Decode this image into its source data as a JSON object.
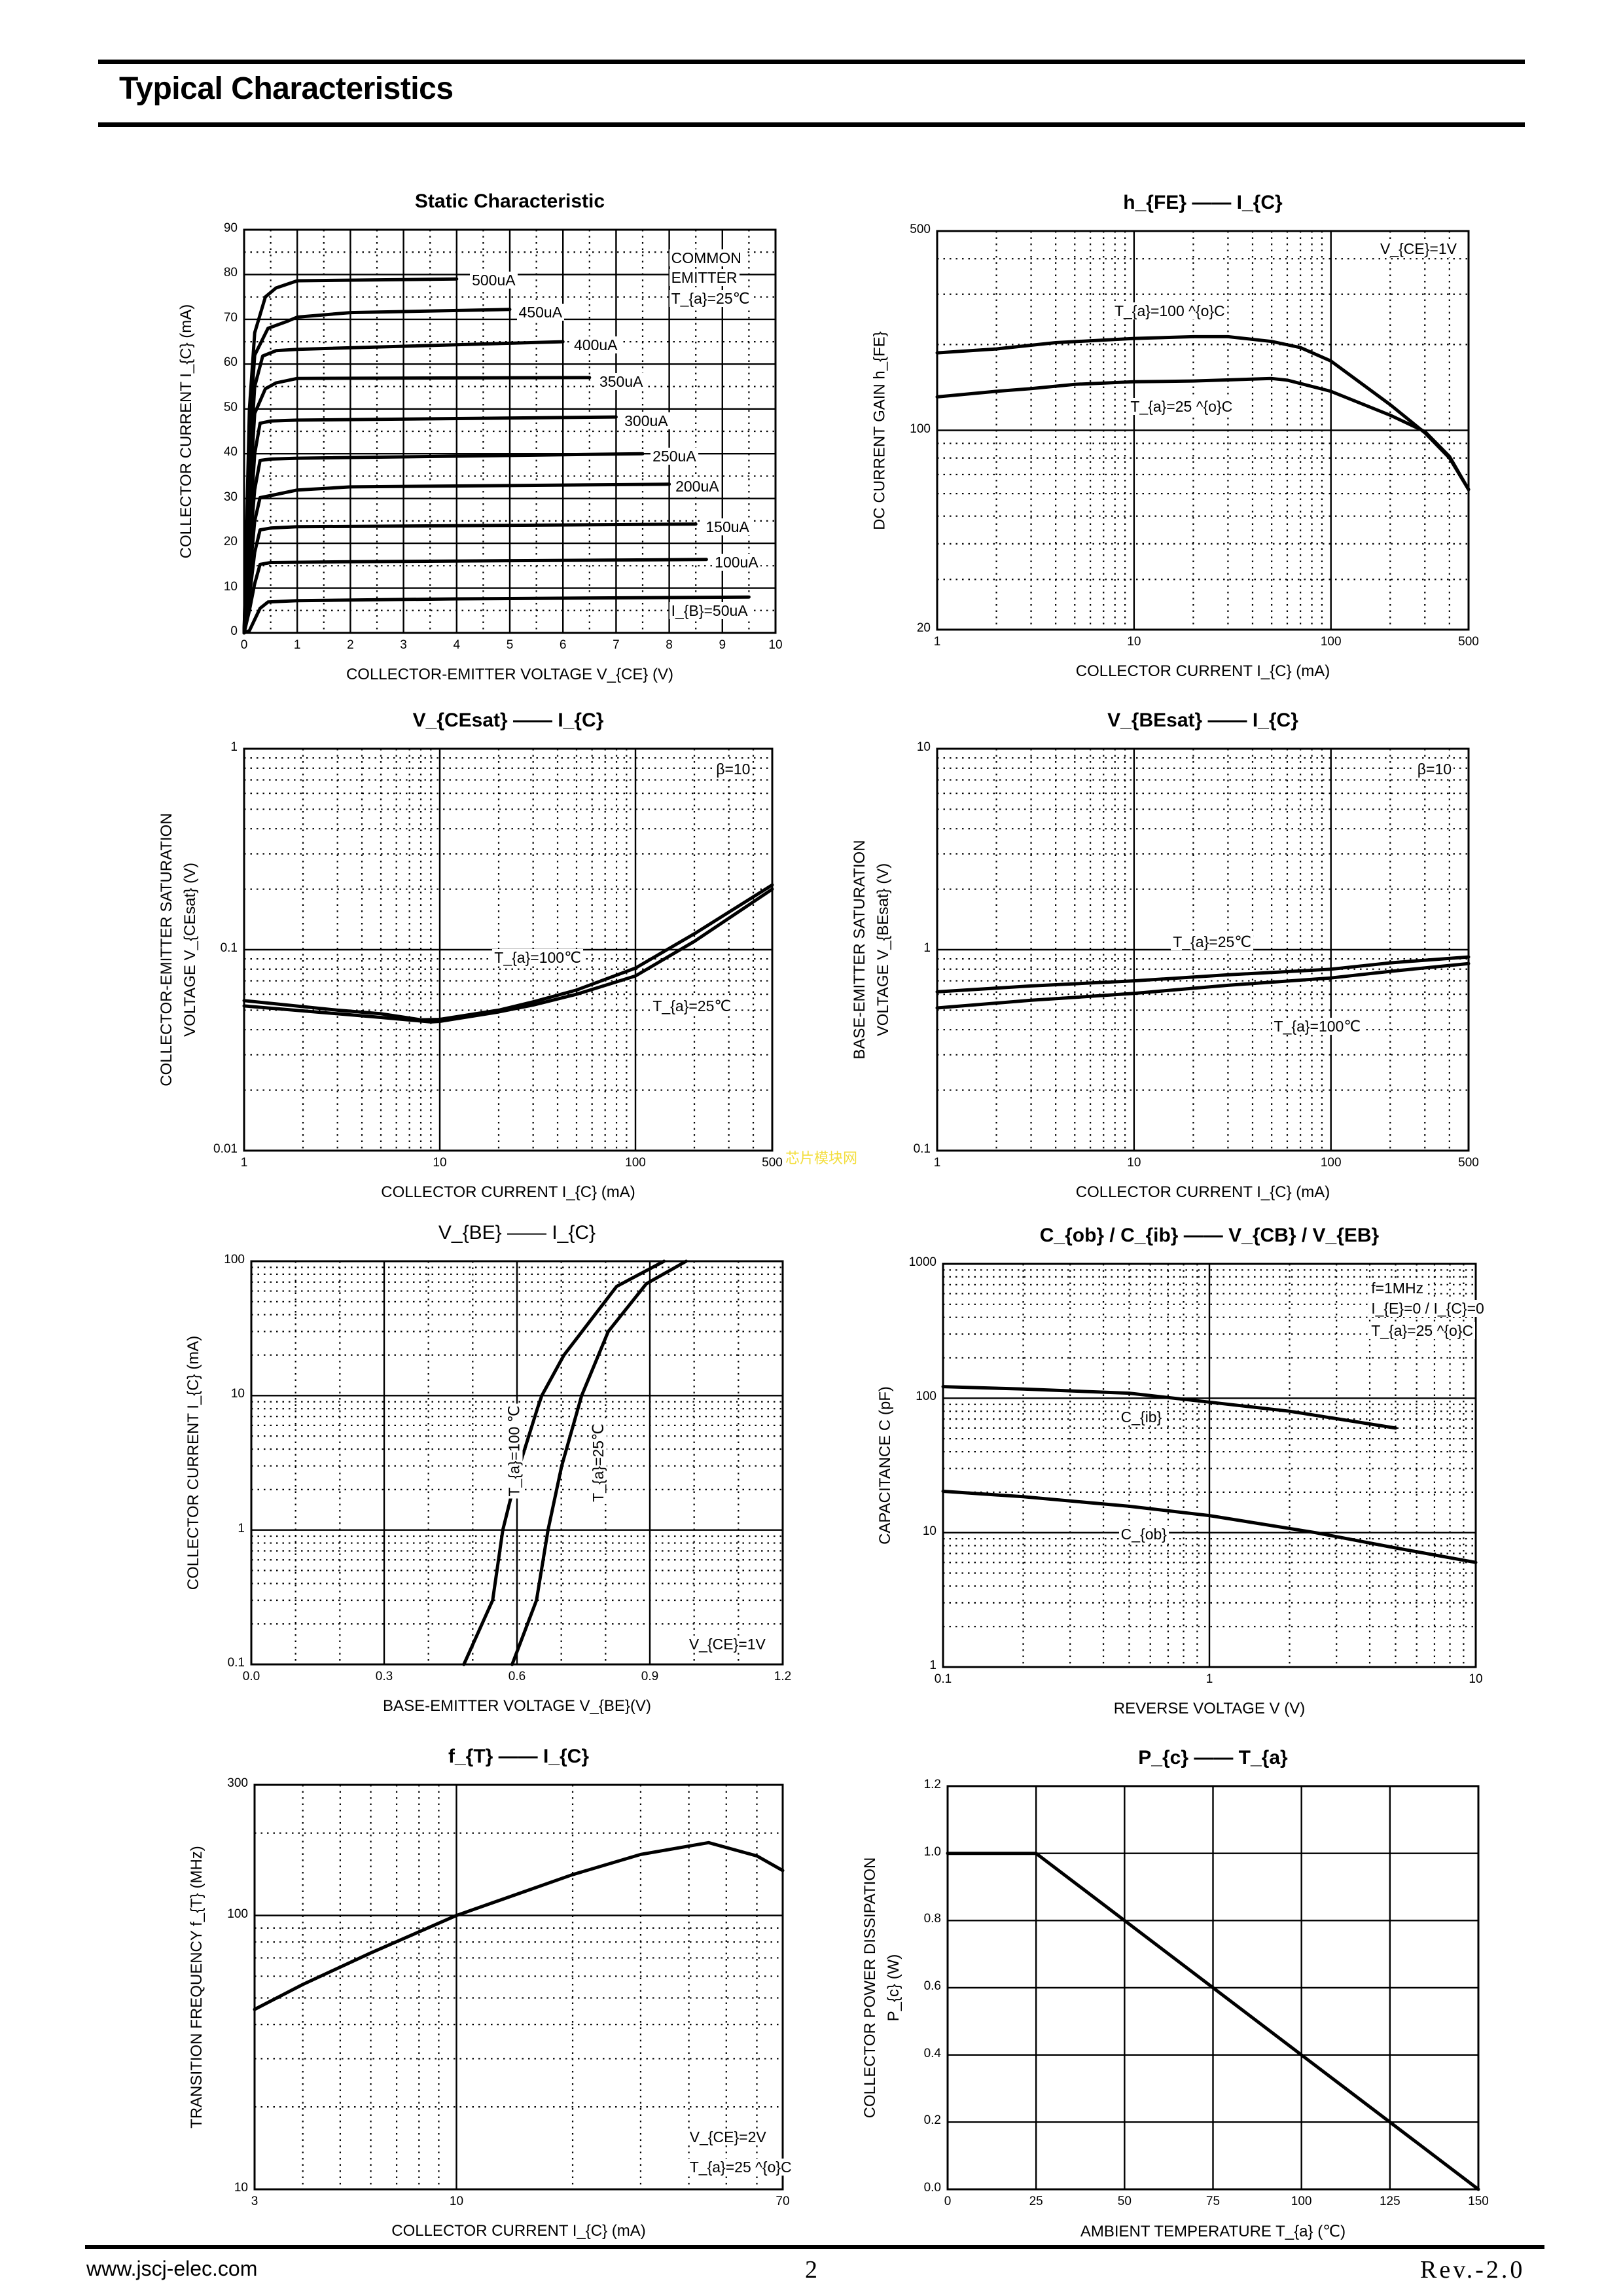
{
  "header": {
    "title": "Typical Characteristics"
  },
  "footer": {
    "website": "www.jscj-elec.com",
    "page_number": "2",
    "revision": "Rev.-2.0"
  },
  "watermark": "芯片模块网",
  "chart_data": [
    {
      "type": "line",
      "title": "Static Characteristic",
      "xlabel": "COLLECTOR-EMITTER VOLTAGE    V_{CE}    (V)",
      "ylabel": [
        "COLLECTOR CURRENT    I_{C}    (mA)"
      ],
      "xscale": "linear",
      "yscale": "linear",
      "xlim": [
        0,
        10
      ],
      "ylim": [
        0,
        90
      ],
      "grid": true,
      "xticks": [
        0,
        1,
        2,
        3,
        4,
        5,
        6,
        7,
        8,
        9,
        10
      ],
      "xtick_labels": [
        "0",
        "1",
        "2",
        "3",
        "4",
        "5",
        "6",
        "7",
        "8",
        "9",
        "10"
      ],
      "yticks": [
        0,
        10,
        20,
        30,
        40,
        50,
        60,
        70,
        80,
        90
      ],
      "ytick_labels": [
        "0",
        "10",
        "20",
        "30",
        "40",
        "50",
        "60",
        "70",
        "80",
        "90"
      ],
      "annotations": [
        "COMMON",
        "EMITTER",
        "T_{a}=25℃"
      ],
      "series": [
        {
          "name": "500uA",
          "label": "500uA",
          "x": [
            0,
            0.1,
            0.2,
            0.4,
            0.6,
            1,
            4
          ],
          "y": [
            0,
            50,
            67,
            75,
            77,
            78.6,
            79
          ]
        },
        {
          "name": "450uA",
          "label": "450uA",
          "x": [
            0,
            0.1,
            0.2,
            0.45,
            0.8,
            1,
            2,
            5
          ],
          "y": [
            0,
            45,
            62,
            68,
            69.5,
            70.5,
            71.5,
            72.2
          ]
        },
        {
          "name": "400uA",
          "label": "400uA",
          "x": [
            0,
            0.1,
            0.2,
            0.35,
            0.6,
            1,
            6
          ],
          "y": [
            0,
            36,
            55,
            61.8,
            63,
            63.3,
            65
          ]
        },
        {
          "name": "350uA",
          "label": "350uA",
          "x": [
            0,
            0.1,
            0.2,
            0.4,
            0.6,
            1,
            6.5
          ],
          "y": [
            0,
            30,
            49,
            54.5,
            55.8,
            56.8,
            57
          ]
        },
        {
          "name": "300uA",
          "label": "300uA",
          "x": [
            0,
            0.1,
            0.2,
            0.3,
            0.5,
            1,
            7
          ],
          "y": [
            0,
            22,
            40,
            46.8,
            47.3,
            47.5,
            48.2
          ]
        },
        {
          "name": "250uA",
          "label": "250uA",
          "x": [
            0,
            0.1,
            0.2,
            0.3,
            0.5,
            1,
            7.5
          ],
          "y": [
            0,
            18,
            32,
            38.5,
            38.8,
            39,
            40
          ]
        },
        {
          "name": "200uA",
          "label": "200uA",
          "x": [
            0,
            0.1,
            0.2,
            0.3,
            0.6,
            1,
            2,
            8
          ],
          "y": [
            0,
            12,
            25,
            30.2,
            30.9,
            31.9,
            32.6,
            33.2
          ]
        },
        {
          "name": "150uA",
          "label": "150uA",
          "x": [
            0,
            0.1,
            0.2,
            0.3,
            0.5,
            1,
            8.5
          ],
          "y": [
            0,
            8,
            18,
            23,
            23.4,
            23.7,
            24.3
          ]
        },
        {
          "name": "100uA",
          "label": "100uA",
          "x": [
            0,
            0.1,
            0.2,
            0.3,
            0.5,
            2,
            8.7
          ],
          "y": [
            0,
            5,
            11,
            15.3,
            15.7,
            15.9,
            16.4
          ]
        },
        {
          "name": "50uA",
          "label": "I_{B}=50uA",
          "x": [
            0,
            0.1,
            0.2,
            0.3,
            0.45,
            1,
            4,
            9.5
          ],
          "y": [
            0,
            0.5,
            3,
            5.5,
            6.9,
            7.2,
            7.6,
            8
          ]
        }
      ]
    },
    {
      "type": "line",
      "title": "h_{FE} ——   I_{C}",
      "xlabel": "COLLECTOR CURRENT    I_{C}    (mA)",
      "ylabel": [
        "DC CURRENT GAIN    h_{FE}"
      ],
      "xscale": "log",
      "yscale": "log",
      "xlim": [
        1,
        500
      ],
      "ylim": [
        20,
        500
      ],
      "grid": true,
      "xticks": [
        1,
        10,
        100,
        500
      ],
      "xtick_labels": [
        "1",
        "10",
        "100",
        "500"
      ],
      "yticks": [
        20,
        100,
        500
      ],
      "ytick_labels": [
        "20",
        "100",
        "500"
      ],
      "annotations": [
        "V_{CE}=1V",
        "T_{a}=100 ^{o}C",
        "T_{a}=25 ^{o}C"
      ],
      "series": [
        {
          "name": "Ta=100°C",
          "x": [
            1,
            2,
            4,
            10,
            20,
            30,
            50,
            70,
            100,
            200,
            300,
            400,
            500
          ],
          "y": [
            187,
            193,
            203,
            210,
            213,
            213,
            205,
            195,
            175,
            123,
            98,
            80,
            62
          ]
        },
        {
          "name": "Ta=25°C",
          "x": [
            1,
            2,
            3,
            5,
            10,
            20,
            50,
            60,
            100,
            200,
            300,
            400,
            500
          ],
          "y": [
            131,
            137,
            140,
            145,
            148,
            149,
            152,
            150,
            137,
            113,
            99,
            81,
            62
          ]
        }
      ]
    },
    {
      "type": "line",
      "title": "V_{CEsat}  ——  I_{C}",
      "xlabel": "COLLECTOR CURRENT    I_{C}    (mA)",
      "ylabel": [
        "COLLECTOR-EMITTER SATURATION",
        "VOLTAGE    V_{CEsat}    (V)"
      ],
      "xscale": "log",
      "yscale": "log",
      "xlim": [
        1,
        500
      ],
      "ylim": [
        0.01,
        1
      ],
      "grid": true,
      "xticks": [
        1,
        10,
        100,
        500
      ],
      "xtick_labels": [
        "1",
        "10",
        "100",
        "500"
      ],
      "yticks": [
        0.01,
        0.1,
        1
      ],
      "ytick_labels": [
        "0.01",
        "0.1",
        "1"
      ],
      "annotations": [
        "β=10",
        "T_{a}=100℃",
        "T_{a}=25℃"
      ],
      "series": [
        {
          "name": "Ta=100°C",
          "x": [
            1,
            3,
            5,
            8,
            10,
            20,
            30,
            50,
            100,
            200,
            500
          ],
          "y": [
            0.0558,
            0.05,
            0.048,
            0.0448,
            0.045,
            0.05,
            0.055,
            0.063,
            0.081,
            0.12,
            0.21
          ]
        },
        {
          "name": "Ta=25°C",
          "x": [
            1,
            3,
            5,
            9,
            10,
            20,
            30,
            50,
            100,
            200,
            500
          ],
          "y": [
            0.0525,
            0.048,
            0.046,
            0.0437,
            0.044,
            0.049,
            0.053,
            0.06,
            0.074,
            0.11,
            0.2
          ]
        }
      ]
    },
    {
      "type": "line",
      "title": "V_{BEsat}  ——    I_{C}",
      "xlabel": "COLLECTOR CURRENT    I_{C}    (mA)",
      "ylabel": [
        "BASE-EMITTER SATURATION",
        "VOLTAGE    V_{BEsat}    (V)"
      ],
      "xscale": "log",
      "yscale": "log",
      "xlim": [
        1,
        500
      ],
      "ylim": [
        0.1,
        10
      ],
      "grid": true,
      "xticks": [
        1,
        10,
        100,
        500
      ],
      "xtick_labels": [
        "1",
        "10",
        "100",
        "500"
      ],
      "yticks": [
        0.1,
        1,
        10
      ],
      "ytick_labels": [
        "0.1",
        "1",
        "10"
      ],
      "annotations": [
        "β=10",
        "T_{a}=25℃",
        "T_{a}=100℃"
      ],
      "series": [
        {
          "name": "Ta=25°C",
          "x": [
            1,
            3,
            10,
            30,
            100,
            200,
            500
          ],
          "y": [
            0.617,
            0.66,
            0.7,
            0.75,
            0.8,
            0.86,
            0.92
          ]
        },
        {
          "name": "Ta=100°C",
          "x": [
            1,
            3,
            10,
            30,
            100,
            200,
            500
          ],
          "y": [
            0.513,
            0.56,
            0.606,
            0.665,
            0.723,
            0.78,
            0.853
          ]
        }
      ]
    },
    {
      "type": "line",
      "title": "V_{BE}       ——        I_{C}",
      "xlabel": "BASE-EMITTER VOLTAGE       V_{BE}(V)",
      "ylabel": [
        "COLLECTOR CURRENT       I_{C} (mA)"
      ],
      "xscale": "linear",
      "yscale": "log",
      "xlim": [
        0,
        1.2
      ],
      "ylim": [
        0.1,
        100
      ],
      "grid": true,
      "xticks": [
        0,
        0.3,
        0.6,
        0.9,
        1.2
      ],
      "xtick_labels": [
        "0.0",
        "0.3",
        "0.6",
        "0.9",
        "1.2"
      ],
      "yticks": [
        0.1,
        1,
        10,
        100
      ],
      "ytick_labels": [
        "0.1",
        "1",
        "10",
        "100"
      ],
      "annotations": [
        "V_{CE}=1V",
        "T_{a}=100 ℃",
        "T_{a}=25℃"
      ],
      "series": [
        {
          "name": "Ta=100°C",
          "x": [
            0.48,
            0.545,
            0.568,
            0.598,
            0.646,
            0.656,
            0.706,
            0.825,
            0.932
          ],
          "y": [
            0.1,
            0.3,
            1,
            2.5,
            8,
            10,
            20,
            65,
            100
          ]
        },
        {
          "name": "Ta=25°C",
          "x": [
            0.589,
            0.644,
            0.67,
            0.701,
            0.746,
            0.806,
            0.892,
            0.982
          ],
          "y": [
            0.1,
            0.3,
            1,
            3,
            10,
            30,
            68,
            100
          ]
        }
      ]
    },
    {
      "type": "line",
      "title": "C_{ob}  /  C_{ib}    ——    V_{CB}  /  V_{EB}",
      "xlabel": "REVERSE  VOLTAGE    V    (V)",
      "ylabel": [
        "CAPACITANCE    C    (pF)"
      ],
      "xscale": "log",
      "yscale": "log",
      "xlim": [
        0.1,
        10
      ],
      "ylim": [
        1,
        1000
      ],
      "grid": true,
      "xticks": [
        0.1,
        1,
        10
      ],
      "xtick_labels": [
        "0.1",
        "1",
        "10"
      ],
      "yticks": [
        1,
        10,
        100,
        1000
      ],
      "ytick_labels": [
        "1",
        "10",
        "100",
        "1000"
      ],
      "annotations": [
        "f=1MHz",
        "I_{E}=0 / I_{C}=0",
        "T_{a}=25 ^{o}C",
        "C_{ib}",
        "C_{ob}"
      ],
      "series": [
        {
          "name": "Cib",
          "x": [
            0.1,
            0.2,
            0.5,
            1,
            2,
            5
          ],
          "y": [
            122,
            117,
            109,
            93.5,
            80,
            60
          ]
        },
        {
          "name": "Cob",
          "x": [
            0.1,
            0.2,
            0.5,
            1,
            2.5,
            5,
            10
          ],
          "y": [
            20.3,
            18.5,
            15.7,
            13.4,
            10,
            7.7,
            6.0
          ]
        }
      ]
    },
    {
      "type": "line",
      "title": "f_{T}    ——     I_{C}",
      "xlabel": "COLLECTOR CURRENT    I_{C}    (mA)",
      "ylabel": [
        "TRANSITION FREQUENCY    f_{T}    (MHz)"
      ],
      "xscale": "log",
      "yscale": "log",
      "xlim": [
        3,
        70
      ],
      "ylim": [
        10,
        300
      ],
      "grid": true,
      "xticks": [
        3,
        10,
        70
      ],
      "xtick_labels": [
        "3",
        "10",
        "70"
      ],
      "yticks": [
        10,
        100,
        300
      ],
      "ytick_labels": [
        "10",
        "100",
        "300"
      ],
      "annotations": [
        "V_{CE}=2V",
        "T_{a}=25 ^{o}C"
      ],
      "series": [
        {
          "name": "fT",
          "x": [
            3,
            4,
            6,
            10,
            20,
            30,
            45,
            60,
            70
          ],
          "y": [
            45.4,
            56,
            73,
            100,
            141,
            167,
            184.5,
            165,
            146
          ]
        }
      ]
    },
    {
      "type": "line",
      "title": "P_{c}    ——    T_{a}",
      "xlabel": "AMBIENT TEMPERATURE    T_{a}    (℃)",
      "ylabel": [
        "COLLECTOR POWER DISSIPATION",
        "P_{c}    (W)"
      ],
      "xscale": "linear",
      "yscale": "linear",
      "xlim": [
        0,
        150
      ],
      "ylim": [
        0,
        1.2
      ],
      "grid": true,
      "xticks": [
        0,
        25,
        50,
        75,
        100,
        125,
        150
      ],
      "xtick_labels": [
        "0",
        "25",
        "50",
        "75",
        "100",
        "125",
        "150"
      ],
      "yticks": [
        0,
        0.2,
        0.4,
        0.6,
        0.8,
        1.0,
        1.2
      ],
      "ytick_labels": [
        "0.0",
        "0.2",
        "0.4",
        "0.6",
        "0.8",
        "1.0",
        "1.2"
      ],
      "annotations": [],
      "series": [
        {
          "name": "Pc",
          "x": [
            0,
            25,
            150
          ],
          "y": [
            1,
            1,
            0
          ]
        }
      ]
    }
  ]
}
